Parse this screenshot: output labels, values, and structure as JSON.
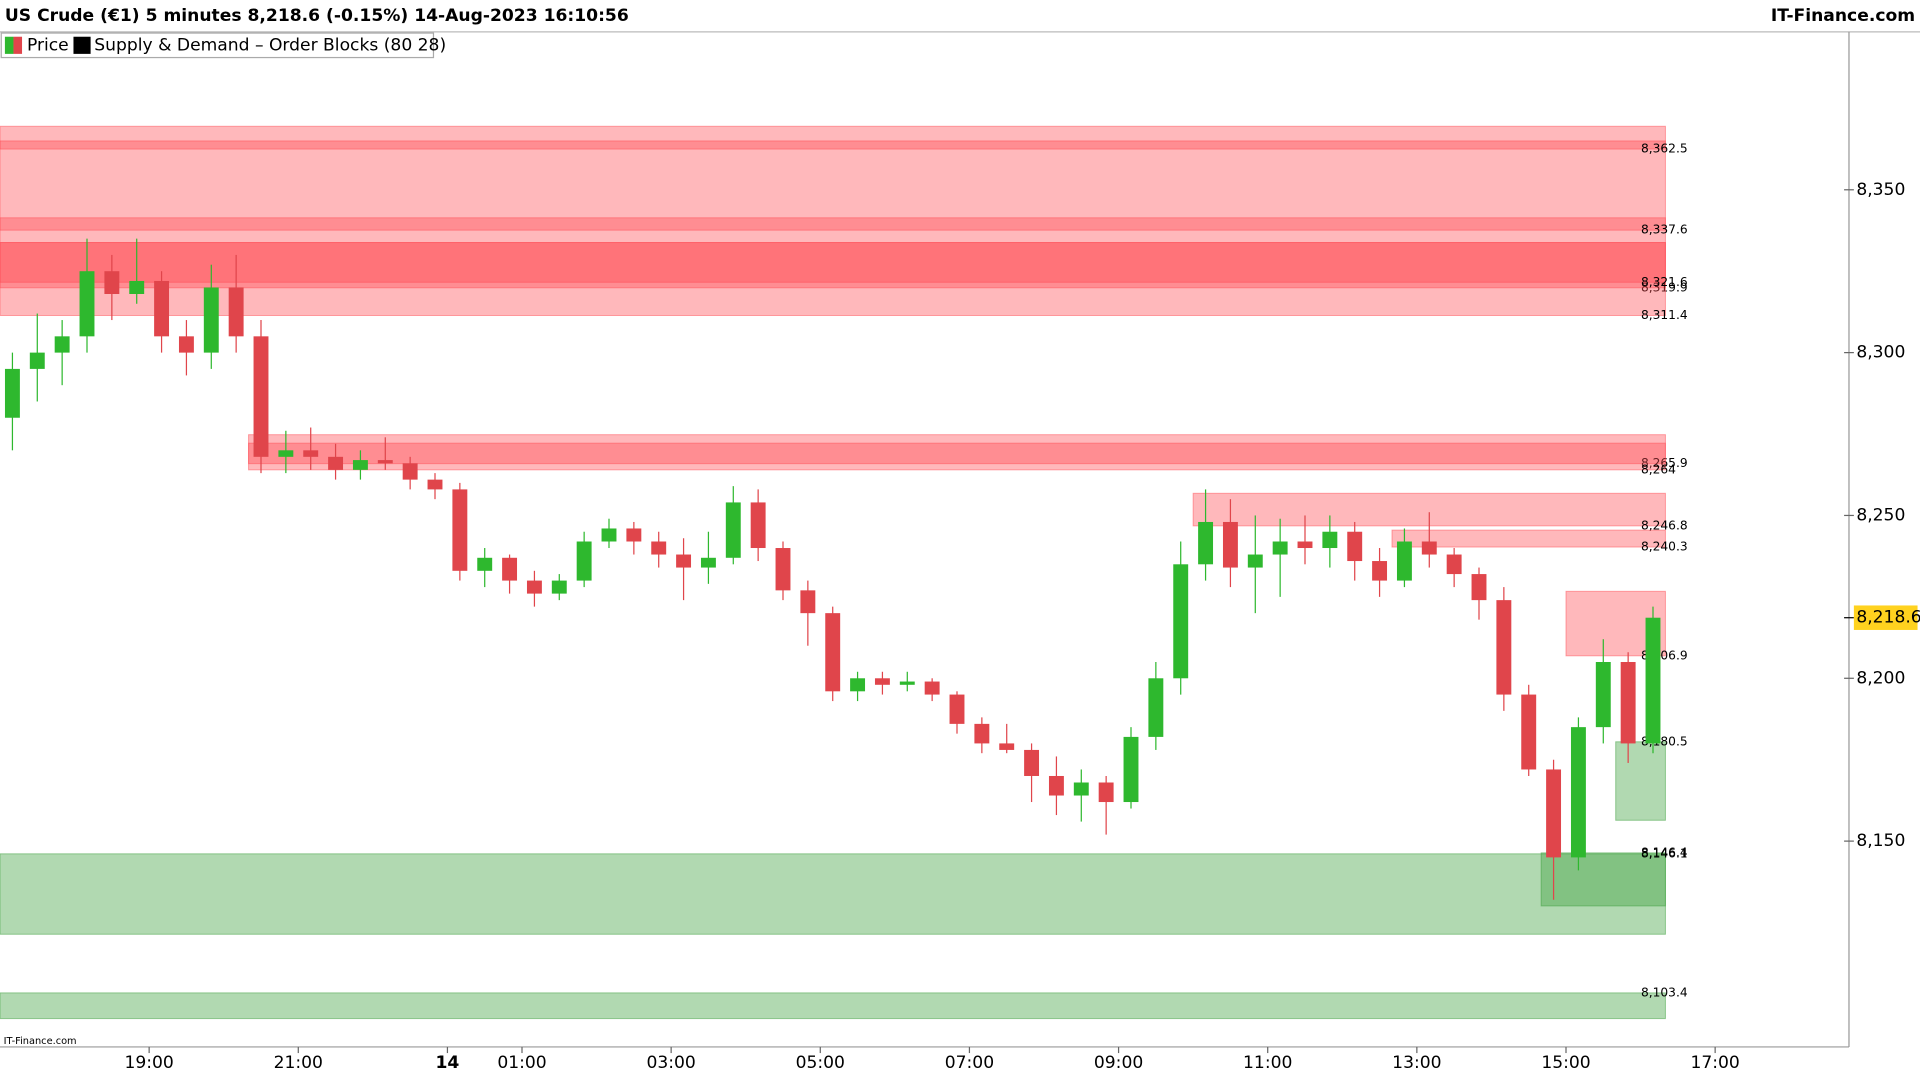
{
  "chart_data": {
    "type": "candlestick",
    "title": "US Crude (€1) 5 minutes 8,218.6 (-0.15%) 14-Aug-2023 16:10:56",
    "brand": "IT-Finance.com",
    "footer_brand": "IT-Finance.com",
    "categories": [
      null,
      null,
      null,
      null,
      null,
      null,
      "19:00",
      null,
      null,
      null,
      null,
      null,
      "21:00",
      null,
      null,
      null,
      null,
      null,
      "14",
      null,
      null,
      "01:00",
      null,
      null,
      null,
      null,
      null,
      "03:00",
      null,
      null,
      null,
      null,
      null,
      "05:00",
      null,
      null,
      null,
      null,
      null,
      "07:00",
      null,
      null,
      null,
      null,
      null,
      "09:00",
      null,
      null,
      null,
      null,
      null,
      "11:00",
      null,
      null,
      null,
      null,
      null,
      "13:00",
      null,
      null,
      null,
      null,
      null,
      "15:00",
      null,
      null,
      null,
      null,
      null,
      "17:00"
    ],
    "series": [
      {
        "name": "Price",
        "up_color": "#2eb82e",
        "down_color": "#e0454b",
        "open": [
          8280,
          8295,
          8300,
          8305,
          8325,
          8318,
          8322,
          8305,
          8300,
          8320,
          8305,
          8268,
          8270,
          8268,
          8264,
          8267,
          8266,
          8261,
          8258,
          8233,
          8237,
          8230,
          8226,
          8230,
          8242,
          8246,
          8242,
          8238,
          8234,
          8237,
          8254,
          8240,
          8227,
          8220,
          8196,
          8200,
          8198,
          8199,
          8195,
          8186,
          8180,
          8178,
          8170,
          8164,
          8168,
          8162,
          8182,
          8200,
          8235,
          8248,
          8234,
          8238,
          8242,
          8240,
          8245,
          8236,
          8230,
          8242,
          8238,
          8232,
          8224,
          8195,
          8172,
          8145,
          8185,
          8205,
          8180,
          null,
          null,
          null
        ],
        "high": [
          8300,
          8312,
          8310,
          8335,
          8330,
          8335,
          8325,
          8310,
          8327,
          8330,
          8310,
          8276,
          8277,
          8272,
          8270,
          8274,
          8268,
          8263,
          8260,
          8240,
          8238,
          8233,
          8232,
          8245,
          8249,
          8248,
          8245,
          8243,
          8245,
          8259,
          8258,
          8242,
          8230,
          8222,
          8202,
          8202,
          8202,
          8200,
          8196,
          8188,
          8186,
          8180,
          8176,
          8172,
          8170,
          8185,
          8205,
          8242,
          8258,
          8255,
          8250,
          8249,
          8250,
          8250,
          8248,
          8240,
          8246,
          8251,
          8240,
          8234,
          8228,
          8198,
          8175,
          8188,
          8212,
          8208,
          8222,
          null,
          null,
          null
        ],
        "low": [
          8270,
          8285,
          8290,
          8300,
          8310,
          8315,
          8300,
          8293,
          8295,
          8300,
          8263,
          8263,
          8264,
          8261,
          8261,
          8264,
          8258,
          8255,
          8230,
          8228,
          8226,
          8222,
          8224,
          8228,
          8240,
          8238,
          8234,
          8224,
          8229,
          8235,
          8236,
          8224,
          8210,
          8193,
          8193,
          8195,
          8196,
          8193,
          8183,
          8177,
          8177,
          8162,
          8158,
          8156,
          8152,
          8160,
          8178,
          8195,
          8230,
          8228,
          8220,
          8225,
          8235,
          8234,
          8230,
          8225,
          8228,
          8234,
          8228,
          8218,
          8190,
          8170,
          8132,
          8141,
          8180,
          8174,
          8177,
          null,
          null,
          null
        ],
        "close": [
          8295,
          8300,
          8305,
          8325,
          8318,
          8322,
          8305,
          8300,
          8320,
          8305,
          8268,
          8270,
          8268,
          8264,
          8267,
          8266,
          8261,
          8258,
          8233,
          8237,
          8230,
          8226,
          8230,
          8242,
          8246,
          8242,
          8238,
          8234,
          8237,
          8254,
          8240,
          8227,
          8220,
          8196,
          8200,
          8198,
          8199,
          8195,
          8186,
          8180,
          8178,
          8170,
          8164,
          8168,
          8162,
          8182,
          8200,
          8235,
          8248,
          8234,
          8238,
          8242,
          8240,
          8245,
          8236,
          8230,
          8242,
          8238,
          8232,
          8224,
          8195,
          8172,
          8145,
          8185,
          8205,
          8180,
          8218.6,
          null,
          null,
          null
        ]
      }
    ],
    "zones": {
      "name": "Supply & Demand – Order Blocks (80 28)",
      "supply_color": "#ff4d55",
      "demand_color": "#3c9f3c",
      "blocks": [
        {
          "kind": "supply",
          "start": 0,
          "top": 8369.5,
          "bottom": 8319.9,
          "label": "8,319.9"
        },
        {
          "kind": "supply",
          "start": 0,
          "top": 8365.0,
          "bottom": 8362.5,
          "label": "8,362.5"
        },
        {
          "kind": "supply",
          "start": 0,
          "top": 8341.4,
          "bottom": 8337.6,
          "label": "8,337.6"
        },
        {
          "kind": "supply",
          "start": 0,
          "top": 8333.8,
          "bottom": 8311.4,
          "label": "8,311.4"
        },
        {
          "kind": "supply",
          "start": 0,
          "top": 8333.8,
          "bottom": 8321.6,
          "label": "8,321.6"
        },
        {
          "kind": "supply",
          "start": 10,
          "top": 8274.8,
          "bottom": 8265.9,
          "label": "8,265.9"
        },
        {
          "kind": "supply",
          "start": 10,
          "top": 8272.2,
          "bottom": 8264,
          "label": "8,264"
        },
        {
          "kind": "supply",
          "start": 48,
          "top": 8256.8,
          "bottom": 8246.8,
          "label": "8,246.8"
        },
        {
          "kind": "supply",
          "start": 56,
          "top": 8245.5,
          "bottom": 8240.3,
          "label": "8,240.3"
        },
        {
          "kind": "supply",
          "start": 63,
          "top": 8226.7,
          "bottom": 8206.9,
          "label": "8,206.9"
        },
        {
          "kind": "demand",
          "start": 65,
          "top": 8180.5,
          "bottom": 8156.4,
          "label": "8,180.5"
        },
        {
          "kind": "demand",
          "start": 62,
          "top": 8146.4,
          "bottom": 8130.1,
          "label": "8,146.4"
        },
        {
          "kind": "demand",
          "start": 0,
          "top": 8146.1,
          "bottom": 8121.4,
          "label": "8,146.1"
        },
        {
          "kind": "demand",
          "start": 0,
          "top": 8103.4,
          "bottom": 8095.5,
          "label": "8,103.4"
        }
      ]
    },
    "last_price": {
      "value": 8218.6,
      "label": "8,218.6"
    },
    "ylim": [
      8086.8,
      8398.5
    ],
    "yticks": [
      {
        "value": 8150,
        "label": "8,150"
      },
      {
        "value": 8200,
        "label": "8,200"
      },
      {
        "value": 8250,
        "label": "8,250"
      },
      {
        "value": 8300,
        "label": "8,300"
      },
      {
        "value": 8350,
        "label": "8,350"
      }
    ]
  }
}
